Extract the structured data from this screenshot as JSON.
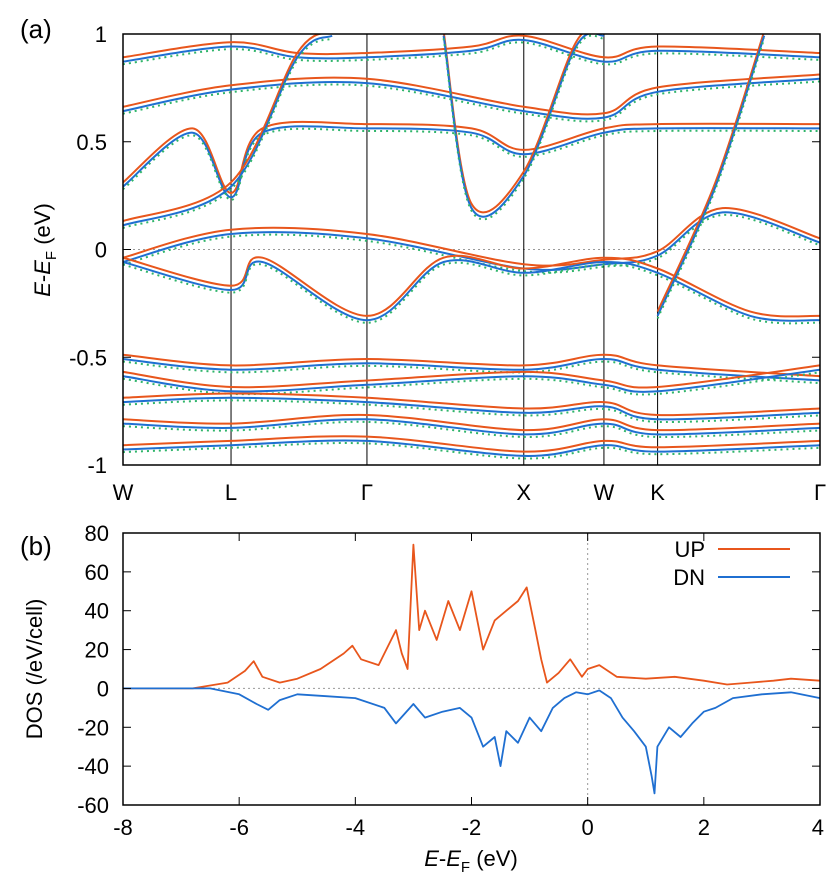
{
  "colors": {
    "up": "#e8561c",
    "dn": "#1f6fd1",
    "dn_dotted": "#2fb56a",
    "axis": "#000000",
    "zero": "#999999"
  },
  "chart_data": [
    {
      "type": "line",
      "panel_label": "(a)",
      "title": "",
      "ylabel_parts": [
        "E",
        "-",
        "E",
        "F",
        " (eV)"
      ],
      "ylim": [
        -1,
        1
      ],
      "yticks": [
        "1",
        "0.5",
        "0",
        "-0.5",
        "-1"
      ],
      "ytick_values": [
        1,
        0.5,
        0,
        -0.5,
        -1
      ],
      "kpoints": [
        "W",
        "L",
        "Γ",
        "X",
        "W",
        "K",
        "Γ"
      ],
      "kpoint_positions": [
        0,
        0.155,
        0.35,
        0.575,
        0.69,
        0.767,
        1.0
      ],
      "series_styles": [
        {
          "name": "UP",
          "style": "solid",
          "color_key": "up"
        },
        {
          "name": "DN",
          "style": "solid",
          "color_key": "dn"
        },
        {
          "name": "dotted",
          "style": "dotted",
          "color_key": "dn_dotted"
        }
      ],
      "bands": [
        [
          [
            0,
            -0.05
          ],
          [
            0.155,
            0.08
          ],
          [
            0.35,
            0.06
          ],
          [
            0.575,
            -0.08
          ],
          [
            0.69,
            -0.06
          ],
          [
            0.767,
            -0.02
          ],
          [
            0.86,
            0.18
          ],
          [
            1.0,
            0.04
          ]
        ],
        [
          [
            0,
            -0.05
          ],
          [
            0.155,
            -0.18
          ],
          [
            0.2,
            -0.05
          ],
          [
            0.35,
            -0.32
          ],
          [
            0.46,
            -0.05
          ],
          [
            0.575,
            -0.1
          ],
          [
            0.69,
            -0.05
          ],
          [
            0.767,
            -0.1
          ],
          [
            0.9,
            -0.3
          ],
          [
            1.0,
            -0.32
          ]
        ],
        [
          [
            0,
            0.3
          ],
          [
            0.1,
            0.55
          ],
          [
            0.155,
            0.25
          ],
          [
            0.2,
            0.55
          ],
          [
            0.35,
            0.57
          ],
          [
            0.5,
            0.55
          ],
          [
            0.575,
            0.45
          ],
          [
            0.69,
            0.55
          ],
          [
            0.767,
            0.57
          ],
          [
            1.0,
            0.57
          ]
        ],
        [
          [
            0,
            0.65
          ],
          [
            0.155,
            0.75
          ],
          [
            0.35,
            0.78
          ],
          [
            0.575,
            0.65
          ],
          [
            0.69,
            0.62
          ],
          [
            0.767,
            0.74
          ],
          [
            1.0,
            0.8
          ]
        ],
        [
          [
            0,
            0.88
          ],
          [
            0.155,
            0.95
          ],
          [
            0.25,
            0.9
          ],
          [
            0.35,
            0.9
          ],
          [
            0.5,
            0.93
          ],
          [
            0.575,
            0.98
          ],
          [
            0.69,
            0.88
          ],
          [
            0.767,
            0.93
          ],
          [
            1.0,
            0.9
          ]
        ],
        [
          [
            0,
            -0.5
          ],
          [
            0.155,
            -0.55
          ],
          [
            0.35,
            -0.52
          ],
          [
            0.575,
            -0.55
          ],
          [
            0.69,
            -0.5
          ],
          [
            0.767,
            -0.55
          ],
          [
            1.0,
            -0.6
          ]
        ],
        [
          [
            0,
            -0.58
          ],
          [
            0.155,
            -0.65
          ],
          [
            0.35,
            -0.62
          ],
          [
            0.575,
            -0.58
          ],
          [
            0.69,
            -0.62
          ],
          [
            0.767,
            -0.65
          ],
          [
            1.0,
            -0.55
          ]
        ],
        [
          [
            0,
            -0.7
          ],
          [
            0.155,
            -0.68
          ],
          [
            0.35,
            -0.7
          ],
          [
            0.575,
            -0.75
          ],
          [
            0.69,
            -0.72
          ],
          [
            0.767,
            -0.78
          ],
          [
            1.0,
            -0.75
          ]
        ],
        [
          [
            0,
            -0.8
          ],
          [
            0.155,
            -0.82
          ],
          [
            0.35,
            -0.78
          ],
          [
            0.575,
            -0.85
          ],
          [
            0.69,
            -0.8
          ],
          [
            0.767,
            -0.85
          ],
          [
            1.0,
            -0.82
          ]
        ],
        [
          [
            0,
            -0.92
          ],
          [
            0.155,
            -0.9
          ],
          [
            0.35,
            -0.88
          ],
          [
            0.575,
            -0.95
          ],
          [
            0.69,
            -0.9
          ],
          [
            0.767,
            -0.93
          ],
          [
            1.0,
            -0.9
          ]
        ],
        [
          [
            0,
            0.12
          ],
          [
            0.155,
            0.3
          ],
          [
            0.25,
            0.9
          ],
          [
            0.3,
            1.0
          ]
        ],
        [
          [
            0.46,
            1.0
          ],
          [
            0.5,
            0.2
          ],
          [
            0.575,
            0.35
          ],
          [
            0.65,
            0.95
          ],
          [
            0.69,
            1.0
          ]
        ],
        [
          [
            0.767,
            -0.3
          ],
          [
            0.85,
            0.3
          ],
          [
            0.92,
            1.0
          ]
        ]
      ]
    },
    {
      "type": "line",
      "panel_label": "(b)",
      "title": "",
      "xlabel_parts": [
        "E",
        "-",
        "E",
        "F",
        " (eV)"
      ],
      "ylabel": "DOS (/eV/cell)",
      "xlim": [
        -8,
        4
      ],
      "ylim": [
        -60,
        80
      ],
      "xticks": [
        "-8",
        "-6",
        "-4",
        "-2",
        "0",
        "2",
        "4"
      ],
      "xtick_values": [
        -8,
        -6,
        -4,
        -2,
        0,
        2,
        4
      ],
      "yticks": [
        "80",
        "60",
        "40",
        "20",
        "0",
        "-20",
        "-40",
        "-60"
      ],
      "ytick_values": [
        80,
        60,
        40,
        20,
        0,
        -20,
        -40,
        -60
      ],
      "legend_position": "top-right",
      "series": [
        {
          "name": "UP",
          "color_key": "up",
          "x": [
            -8,
            -6.8,
            -6.2,
            -5.9,
            -5.75,
            -5.6,
            -5.3,
            -5.0,
            -4.6,
            -4.2,
            -4.05,
            -3.9,
            -3.6,
            -3.3,
            -3.2,
            -3.1,
            -3.0,
            -2.9,
            -2.8,
            -2.6,
            -2.4,
            -2.2,
            -2.0,
            -1.8,
            -1.6,
            -1.4,
            -1.2,
            -1.05,
            -0.9,
            -0.8,
            -0.7,
            -0.5,
            -0.3,
            -0.1,
            0.0,
            0.2,
            0.5,
            1.0,
            1.5,
            2.0,
            2.4,
            2.8,
            3.2,
            3.5,
            4.0
          ],
          "values": [
            0,
            0,
            3,
            9,
            14,
            6,
            3,
            5,
            10,
            18,
            22,
            15,
            12,
            30,
            18,
            10,
            74,
            30,
            40,
            25,
            45,
            30,
            50,
            20,
            35,
            40,
            45,
            52,
            30,
            15,
            3,
            8,
            15,
            6,
            10,
            12,
            6,
            5,
            6,
            4,
            2,
            3,
            4,
            5,
            4
          ]
        },
        {
          "name": "DN",
          "color_key": "dn",
          "x": [
            -8,
            -6.5,
            -6.0,
            -5.7,
            -5.5,
            -5.3,
            -5.0,
            -4.5,
            -4.0,
            -3.5,
            -3.3,
            -3.0,
            -2.8,
            -2.5,
            -2.2,
            -2.0,
            -1.8,
            -1.6,
            -1.5,
            -1.4,
            -1.2,
            -1.0,
            -0.8,
            -0.6,
            -0.4,
            -0.2,
            0.0,
            0.2,
            0.4,
            0.6,
            0.8,
            1.0,
            1.1,
            1.15,
            1.2,
            1.4,
            1.6,
            1.8,
            2.0,
            2.2,
            2.5,
            3.0,
            3.5,
            4.0
          ],
          "values": [
            0,
            0,
            -3,
            -8,
            -11,
            -6,
            -3,
            -4,
            -5,
            -10,
            -18,
            -8,
            -15,
            -12,
            -10,
            -15,
            -30,
            -25,
            -40,
            -22,
            -28,
            -15,
            -22,
            -10,
            -5,
            -2,
            -3,
            -1,
            -5,
            -15,
            -22,
            -30,
            -45,
            -54,
            -30,
            -20,
            -25,
            -18,
            -12,
            -10,
            -5,
            -3,
            -2,
            -5
          ]
        }
      ]
    }
  ]
}
